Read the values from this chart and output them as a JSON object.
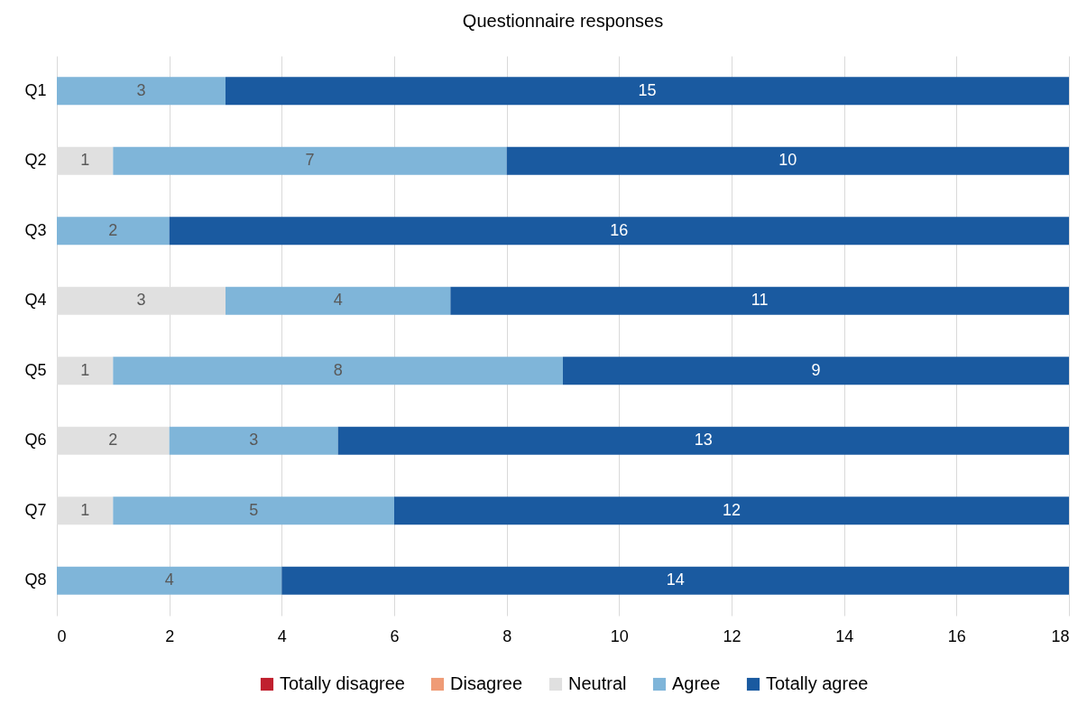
{
  "chart_data": {
    "type": "bar",
    "orientation": "horizontal",
    "stacked": true,
    "title": "Questionnaire responses",
    "categories": [
      "Q1",
      "Q2",
      "Q3",
      "Q4",
      "Q5",
      "Q6",
      "Q7",
      "Q8"
    ],
    "series": [
      {
        "name": "Totally disagree",
        "color": "#c0202e",
        "values": [
          null,
          null,
          null,
          null,
          null,
          null,
          null,
          null
        ]
      },
      {
        "name": "Disagree",
        "color": "#ef9b76",
        "values": [
          null,
          null,
          null,
          null,
          null,
          null,
          null,
          null
        ]
      },
      {
        "name": "Neutral",
        "color": "#e0e0e0",
        "values": [
          null,
          1,
          null,
          3,
          1,
          2,
          1,
          null
        ]
      },
      {
        "name": "Agree",
        "color": "#7fb5d9",
        "values": [
          3,
          7,
          2,
          4,
          8,
          3,
          5,
          4
        ]
      },
      {
        "name": "Totally agree",
        "color": "#1a5aa0",
        "values": [
          15,
          10,
          16,
          11,
          9,
          13,
          12,
          14
        ]
      }
    ],
    "xlim": [
      0,
      18
    ],
    "xticks": [
      0,
      2,
      4,
      6,
      8,
      10,
      12,
      14,
      16,
      18
    ],
    "grid": "x",
    "legend": "bottom",
    "data_labels": true
  }
}
